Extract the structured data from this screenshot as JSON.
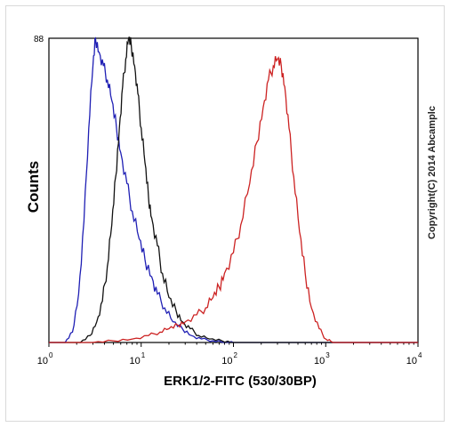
{
  "chart_data": {
    "type": "line",
    "ylabel": "Counts",
    "xlabel": "ERK1/2-FITC (530/30BP)",
    "x_scale": "log",
    "xlim": [
      1,
      10000
    ],
    "ylim": [
      0,
      88
    ],
    "y_max_label": "88",
    "x_ticks": [
      {
        "base": "10",
        "exp": "0"
      },
      {
        "base": "10",
        "exp": "1"
      },
      {
        "base": "10",
        "exp": "2"
      },
      {
        "base": "10",
        "exp": "3"
      },
      {
        "base": "10",
        "exp": "4"
      }
    ],
    "series": [
      {
        "color": "#1f1fb4",
        "x": [
          1.5,
          1.8,
          2.1,
          2.4,
          2.7,
          3.0,
          3.2,
          3.5,
          3.9,
          4.3,
          4.8,
          5.4,
          6.0,
          7.0,
          8.0,
          9.5,
          11,
          13,
          15,
          18,
          22,
          28,
          35,
          45,
          60,
          80,
          100
        ],
        "y": [
          0,
          3,
          14,
          35,
          62,
          80,
          88,
          84,
          80,
          76,
          70,
          62,
          55,
          46,
          38,
          30,
          24,
          19,
          14,
          10,
          6,
          4,
          2,
          1,
          0.5,
          0,
          0
        ]
      },
      {
        "color": "#111111",
        "x": [
          2.2,
          2.8,
          3.3,
          3.8,
          4.3,
          4.8,
          5.3,
          5.8,
          6.3,
          6.8,
          7.3,
          7.8,
          8.5,
          9.2,
          10,
          11,
          12,
          13,
          15,
          17,
          20,
          24,
          28,
          34,
          42,
          55,
          75,
          100
        ],
        "y": [
          0,
          2,
          6,
          12,
          22,
          34,
          48,
          62,
          74,
          82,
          88,
          86,
          80,
          72,
          62,
          52,
          42,
          36,
          28,
          20,
          13,
          9,
          6,
          4,
          2,
          1,
          0.5,
          0
        ]
      },
      {
        "color": "#cc2222",
        "x": [
          3,
          5,
          8,
          12,
          16,
          20,
          25,
          30,
          40,
          50,
          60,
          70,
          80,
          100,
          120,
          150,
          180,
          210,
          240,
          270,
          300,
          330,
          360,
          400,
          450,
          520,
          600,
          700,
          850,
          1000,
          1200
        ],
        "y": [
          0,
          0.5,
          1,
          2,
          3,
          4,
          5,
          6,
          8,
          10,
          13,
          16,
          20,
          26,
          34,
          46,
          58,
          68,
          76,
          80,
          82,
          80,
          74,
          62,
          48,
          32,
          20,
          10,
          4,
          1,
          0
        ]
      }
    ]
  }
}
